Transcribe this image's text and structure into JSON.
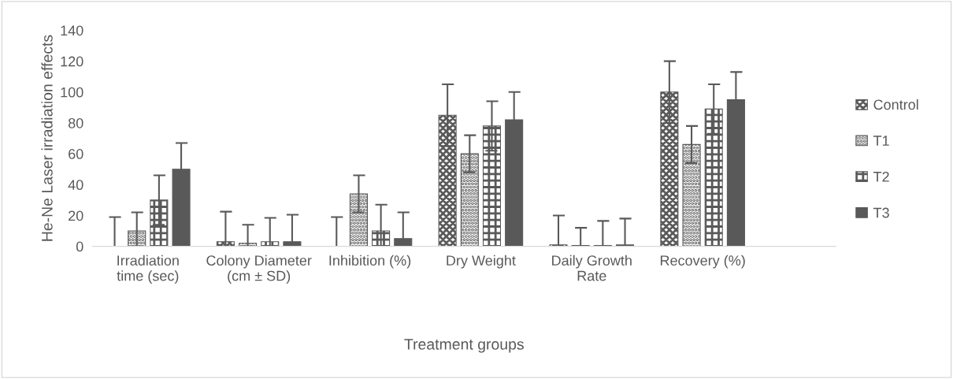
{
  "chart_data": {
    "type": "bar",
    "xlabel": "Treatment groups",
    "ylabel": "He-Ne Laser irradiation effects",
    "categories": [
      "Irradiation time (sec)",
      "Colony Diameter (cm ± SD)",
      "Inhibition (%)",
      "Dry Weight",
      "Daily Growth Rate",
      "Recovery (%)"
    ],
    "series": [
      {
        "name": "Control",
        "color": "#595959",
        "values": [
          0,
          3,
          0,
          85,
          1,
          100
        ],
        "errors": [
          [
            0,
            19
          ],
          [
            0,
            22.5
          ],
          [
            0,
            19
          ],
          [
            65,
            105
          ],
          [
            0,
            20
          ],
          [
            80,
            120
          ]
        ]
      },
      {
        "name": "T1",
        "color": "#595959",
        "values": [
          10,
          2,
          34,
          60,
          0.5,
          66
        ],
        "errors": [
          [
            0,
            22
          ],
          [
            0,
            14
          ],
          [
            22,
            46
          ],
          [
            48,
            72
          ],
          [
            0,
            12
          ],
          [
            54,
            78
          ]
        ]
      },
      {
        "name": "T2",
        "color": "#595959",
        "values": [
          30,
          3,
          10,
          78,
          0.5,
          89
        ],
        "errors": [
          [
            14,
            46
          ],
          [
            0,
            18.5
          ],
          [
            0,
            27
          ],
          [
            62,
            94
          ],
          [
            0,
            16.5
          ],
          [
            73,
            105
          ]
        ]
      },
      {
        "name": "T3",
        "color": "#595959",
        "values": [
          50,
          3,
          5,
          82,
          1,
          95
        ],
        "errors": [
          [
            50,
            67
          ],
          [
            3,
            20.5
          ],
          [
            5,
            22
          ],
          [
            82,
            100
          ],
          [
            1,
            18
          ],
          [
            95,
            113
          ]
        ]
      }
    ],
    "ylim": [
      0,
      140
    ],
    "yticks": [
      0,
      20,
      40,
      60,
      80,
      100,
      120,
      140
    ],
    "legend": "right"
  }
}
